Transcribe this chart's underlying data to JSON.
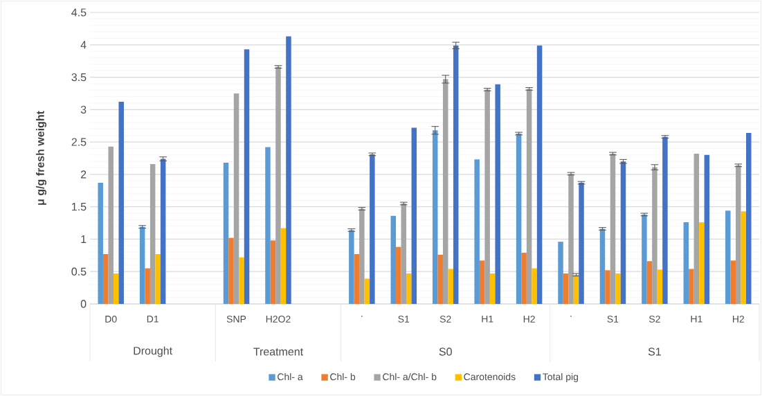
{
  "chart_data": {
    "type": "bar",
    "ylabel": "μ g/g fresh weight",
    "categories": [
      "D0",
      "D1",
      null,
      "SNP",
      "H2O2",
      null,
      "·",
      "S1",
      "S2",
      "H1",
      "H2",
      "·",
      "S1",
      "S2",
      "H1",
      "H2"
    ],
    "annotations": [
      "Drought",
      "Treatment",
      "S0",
      "S1"
    ],
    "ylim": [
      0,
      4.5
    ],
    "yticks": [
      0,
      0.5,
      1,
      1.5,
      2,
      2.5,
      3,
      3.5,
      4,
      4.5
    ],
    "grid": "y",
    "legend": "bottom",
    "series": [
      {
        "name": "Chl- a",
        "color": "#5b9bd5",
        "values": [
          1.87,
          1.19,
          null,
          2.18,
          2.42,
          null,
          1.14,
          1.36,
          2.68,
          2.23,
          2.63,
          0.96,
          1.16,
          1.38,
          1.26,
          1.44
        ],
        "errors": [
          null,
          0.02,
          null,
          null,
          null,
          null,
          0.02,
          null,
          0.06,
          null,
          0.02,
          null,
          0.02,
          0.02,
          null,
          null
        ]
      },
      {
        "name": "Chl- b",
        "color": "#ed7d31",
        "values": [
          0.77,
          0.55,
          null,
          1.02,
          0.98,
          null,
          0.77,
          0.88,
          0.76,
          0.67,
          0.79,
          0.47,
          0.52,
          0.66,
          0.54,
          0.67
        ],
        "errors": [
          null,
          null,
          null,
          null,
          null,
          null,
          null,
          null,
          null,
          null,
          null,
          null,
          null,
          null,
          null,
          null
        ]
      },
      {
        "name": "Chl- a/Chl- b",
        "color": "#a5a5a5",
        "values": [
          2.43,
          2.16,
          null,
          3.25,
          3.66,
          null,
          1.47,
          1.55,
          3.47,
          3.31,
          3.32,
          2.01,
          2.32,
          2.11,
          2.32,
          2.14
        ],
        "errors": [
          null,
          null,
          null,
          null,
          0.02,
          null,
          0.02,
          0.02,
          0.06,
          0.02,
          0.02,
          0.02,
          0.02,
          0.04,
          null,
          0.02
        ]
      },
      {
        "name": "Carotenoids",
        "color": "#ffc000",
        "values": [
          0.47,
          0.77,
          null,
          0.72,
          1.17,
          null,
          0.39,
          0.47,
          0.54,
          0.47,
          0.55,
          0.45,
          0.47,
          0.53,
          1.26,
          1.43
        ],
        "errors": [
          null,
          null,
          null,
          null,
          null,
          null,
          null,
          null,
          null,
          null,
          null,
          0.02,
          null,
          null,
          null,
          null
        ]
      },
      {
        "name": "Total pig",
        "color": "#4472c4",
        "values": [
          3.12,
          2.24,
          null,
          3.93,
          4.13,
          null,
          2.31,
          2.72,
          3.99,
          3.39,
          3.99,
          1.87,
          2.2,
          2.58,
          2.3,
          2.64
        ],
        "errors": [
          null,
          0.03,
          null,
          null,
          null,
          null,
          0.02,
          null,
          0.05,
          null,
          null,
          0.02,
          0.03,
          0.02,
          null,
          null
        ]
      }
    ]
  }
}
